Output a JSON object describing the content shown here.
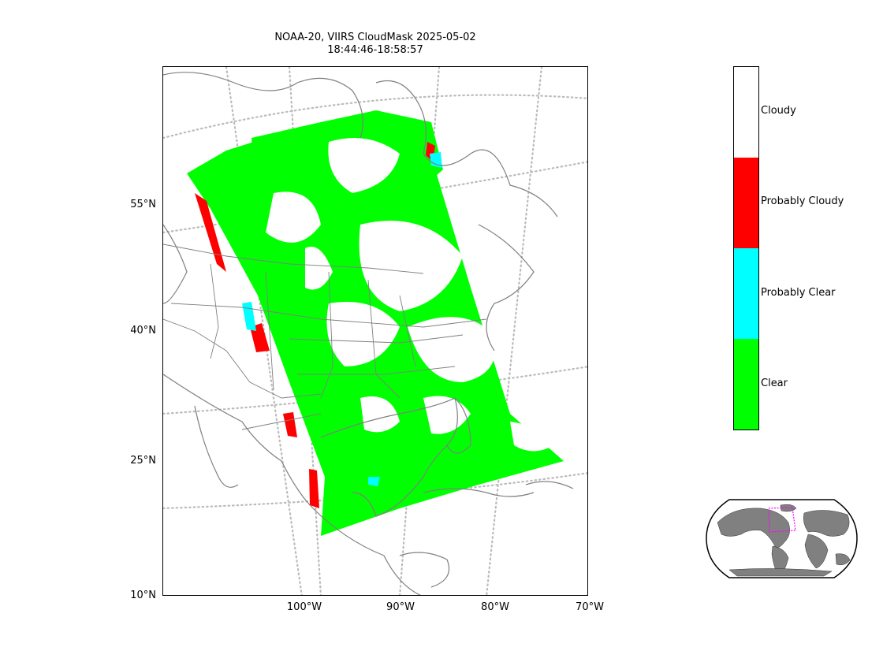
{
  "title": {
    "line1": "NOAA-20, VIIRS CloudMask 2025-05-02",
    "line2": "18:44:46-18:58:57"
  },
  "map": {
    "lat_ticks": [
      "55°N",
      "40°N",
      "25°N",
      "10°N"
    ],
    "lon_ticks": [
      "100°W",
      "90°W",
      "80°W",
      "70°W"
    ],
    "swath_colors": {
      "clear": "#00ff00",
      "probably_clear": "#00ffff",
      "probably_cloudy": "#ff0000",
      "cloudy": "#ffffff"
    },
    "coastline_color": "#808080",
    "graticule_color": "#bbbbbb"
  },
  "colorbar": {
    "categories": [
      {
        "label": "Cloudy",
        "color": "#ffffff"
      },
      {
        "label": "Probably Cloudy",
        "color": "#ff0000"
      },
      {
        "label": "Probably Clear",
        "color": "#00ffff"
      },
      {
        "label": "Clear",
        "color": "#00ff00"
      }
    ]
  },
  "inset": {
    "land_color": "#808080",
    "box_color": "#ff00ff"
  }
}
